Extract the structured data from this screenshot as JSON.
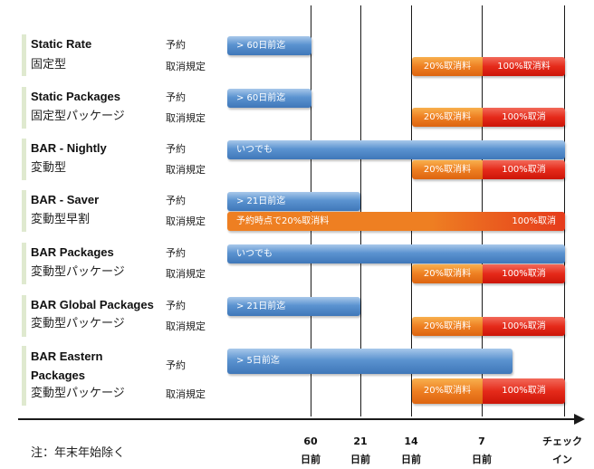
{
  "plans": [
    {
      "name_en": "Static Rate",
      "name_ja": "固定型",
      "booking_label": "予約",
      "cancel_label": "取消規定",
      "booking_bar": "> 60日前迄",
      "cancel_left": "20%取消料",
      "cancel_right": "100%取消料"
    },
    {
      "name_en": "Static Packages",
      "name_ja": "固定型パッケージ",
      "booking_label": "予約",
      "cancel_label": "取消規定",
      "booking_bar": "> 60日前迄",
      "cancel_left": "20%取消料",
      "cancel_right": "100%取消"
    },
    {
      "name_en": "BAR - Nightly",
      "name_ja": "変動型",
      "booking_label": "予約",
      "cancel_label": "取消規定",
      "booking_bar": "いつでも",
      "cancel_left": "20%取消料",
      "cancel_right": "100%取消"
    },
    {
      "name_en": "BAR - Saver",
      "name_ja": "変動型早割",
      "booking_label": "予約",
      "cancel_label": "取消規定",
      "booking_bar": "> 21日前迄",
      "cancel_left": "予約時点で20%取消料",
      "cancel_right": "100%取消"
    },
    {
      "name_en": "BAR Packages",
      "name_ja": "変動型パッケージ",
      "booking_label": "予約",
      "cancel_label": "取消規定",
      "booking_bar": "いつでも",
      "cancel_left": "20%取消料",
      "cancel_right": "100%取消"
    },
    {
      "name_en": "BAR Global Packages",
      "name_ja": "変動型パッケージ",
      "booking_label": "予約",
      "cancel_label": "取消規定",
      "booking_bar": "> 21日前迄",
      "cancel_left": "20%取消料",
      "cancel_right": "100%取消"
    },
    {
      "name_en_line1": "BAR Eastern",
      "name_en_line2": "Packages",
      "name_ja": "変動型パッケージ",
      "booking_label": "予約",
      "cancel_label": "取消規定",
      "booking_bar": "> 5日前迄",
      "cancel_left": "20%取消料",
      "cancel_right": "100%取消"
    }
  ],
  "axis": {
    "ticks": [
      {
        "top": "60",
        "bottom": "日前"
      },
      {
        "top": "21",
        "bottom": "日前"
      },
      {
        "top": "14",
        "bottom": "日前"
      },
      {
        "top": "7",
        "bottom": "日前"
      },
      {
        "top": "チェック",
        "bottom": "イン"
      }
    ]
  },
  "note": "注：年末年始除く",
  "colors": {
    "booking_blue": "#4a85c6",
    "cancel_orange": "#ee7f22",
    "cancel_red": "#e52a1a",
    "accent_green": "#dfe9cf"
  }
}
